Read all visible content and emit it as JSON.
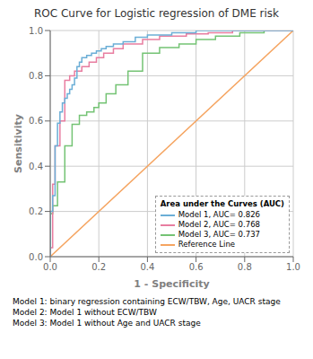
{
  "chart_data": {
    "type": "line",
    "title": "ROC Curve for Logistic regression of DME risk",
    "xlabel": "1 - Specificity",
    "ylabel": "Sensitivity",
    "xlim": [
      0.0,
      1.0
    ],
    "ylim": [
      0.0,
      1.0
    ],
    "xticks": [
      {
        "value": 0.0,
        "label": "0.0"
      },
      0.2,
      0.4,
      0.6,
      0.8,
      {
        "value": 1.0,
        "label": "1.0"
      }
    ],
    "yticks": [
      {
        "value": 0.0,
        "label": "0.0"
      },
      0.2,
      0.4,
      0.6,
      0.8,
      {
        "value": 1.0,
        "label": "1.0"
      }
    ],
    "grid": true,
    "legend": "lower right",
    "legend_title": "Area under the Curves (AUC)",
    "annotations": [
      "Model 1: binary regression containing ECW/TBW, Age, UACR stage",
      "Model 2: Model 1 without ECW/TBW",
      "Model 3: Model 1 without Age and UACR stage"
    ],
    "series": [
      {
        "name": "Model 1, AUC= 0.826",
        "color": "#6BAED6",
        "x": [
          0.0,
          0.0,
          0.01,
          0.01,
          0.02,
          0.02,
          0.03,
          0.03,
          0.04,
          0.04,
          0.05,
          0.05,
          0.06,
          0.06,
          0.07,
          0.07,
          0.08,
          0.08,
          0.09,
          0.09,
          0.1,
          0.1,
          0.11,
          0.11,
          0.12,
          0.12,
          0.13,
          0.13,
          0.15,
          0.15,
          0.17,
          0.17,
          0.19,
          0.19,
          0.21,
          0.21,
          0.23,
          0.23,
          0.26,
          0.26,
          0.3,
          0.3,
          0.35,
          0.35,
          0.4,
          0.4,
          0.5,
          0.5,
          0.6,
          0.6,
          0.7,
          0.7,
          0.8,
          0.8,
          1.0
        ],
        "values": [
          0.0,
          0.2,
          0.2,
          0.27,
          0.27,
          0.49,
          0.49,
          0.59,
          0.59,
          0.64,
          0.64,
          0.68,
          0.68,
          0.7,
          0.7,
          0.72,
          0.72,
          0.74,
          0.74,
          0.76,
          0.76,
          0.79,
          0.79,
          0.84,
          0.84,
          0.86,
          0.86,
          0.88,
          0.88,
          0.89,
          0.89,
          0.9,
          0.9,
          0.91,
          0.91,
          0.92,
          0.92,
          0.93,
          0.93,
          0.94,
          0.94,
          0.95,
          0.95,
          0.97,
          0.97,
          0.98,
          0.98,
          0.99,
          0.99,
          1.0,
          1.0,
          1.0,
          1.0,
          1.0,
          1.0
        ]
      },
      {
        "name": "Model 2, AUC= 0.768",
        "color": "#E87DA0",
        "x": [
          0.0,
          0.0,
          0.01,
          0.01,
          0.02,
          0.02,
          0.04,
          0.04,
          0.06,
          0.06,
          0.08,
          0.08,
          0.1,
          0.1,
          0.13,
          0.13,
          0.16,
          0.16,
          0.19,
          0.19,
          0.22,
          0.22,
          0.26,
          0.26,
          0.3,
          0.3,
          0.38,
          0.38,
          0.45,
          0.45,
          0.56,
          0.56,
          0.65,
          0.65,
          0.75,
          0.75,
          0.85,
          0.85,
          1.0
        ],
        "values": [
          0.0,
          0.04,
          0.04,
          0.32,
          0.32,
          0.49,
          0.49,
          0.6,
          0.6,
          0.78,
          0.78,
          0.8,
          0.8,
          0.82,
          0.82,
          0.84,
          0.84,
          0.86,
          0.86,
          0.88,
          0.88,
          0.9,
          0.9,
          0.92,
          0.92,
          0.94,
          0.94,
          0.96,
          0.96,
          0.975,
          0.975,
          0.985,
          0.985,
          0.99,
          0.99,
          1.0,
          1.0,
          1.0,
          1.0
        ]
      },
      {
        "name": "Model 3, AUC= 0.737",
        "color": "#74C374",
        "x": [
          0.0,
          0.0,
          0.01,
          0.01,
          0.03,
          0.03,
          0.06,
          0.06,
          0.09,
          0.09,
          0.12,
          0.12,
          0.15,
          0.15,
          0.18,
          0.18,
          0.2,
          0.2,
          0.23,
          0.23,
          0.27,
          0.27,
          0.32,
          0.32,
          0.38,
          0.38,
          0.45,
          0.45,
          0.53,
          0.53,
          0.6,
          0.6,
          0.68,
          0.68,
          0.78,
          0.78,
          0.88,
          0.88,
          1.0
        ],
        "values": [
          0.0,
          0.19,
          0.19,
          0.225,
          0.225,
          0.33,
          0.33,
          0.49,
          0.49,
          0.585,
          0.585,
          0.625,
          0.625,
          0.64,
          0.64,
          0.66,
          0.66,
          0.68,
          0.68,
          0.72,
          0.72,
          0.76,
          0.76,
          0.82,
          0.82,
          0.9,
          0.9,
          0.925,
          0.925,
          0.94,
          0.94,
          0.96,
          0.96,
          0.975,
          0.975,
          0.99,
          0.99,
          1.0,
          1.0
        ]
      },
      {
        "name": "Reference Line",
        "color": "#F5A460",
        "x": [
          0,
          1
        ],
        "values": [
          0,
          1
        ]
      }
    ]
  }
}
